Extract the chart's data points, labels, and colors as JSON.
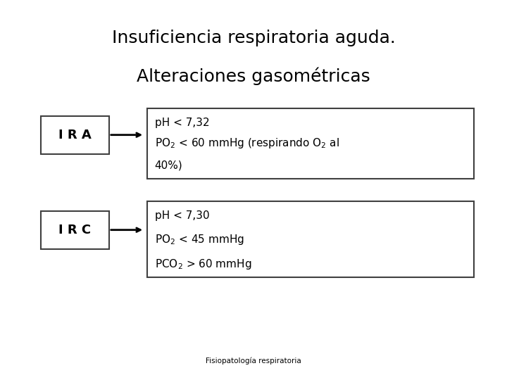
{
  "title_line1": "Insuficiencia respiratoria aguda.",
  "title_line2": "Alteraciones gasométricas",
  "background_color": "#ffffff",
  "box_edge_color": "#404040",
  "text_color": "#000000",
  "arrow_color": "#000000",
  "footer": "Fisiopatología respiratoria",
  "ira_label": "I R A",
  "irc_label": "I R C",
  "title_fontsize": 18,
  "label_fontsize": 13,
  "content_fontsize": 11,
  "footer_fontsize": 7.5
}
